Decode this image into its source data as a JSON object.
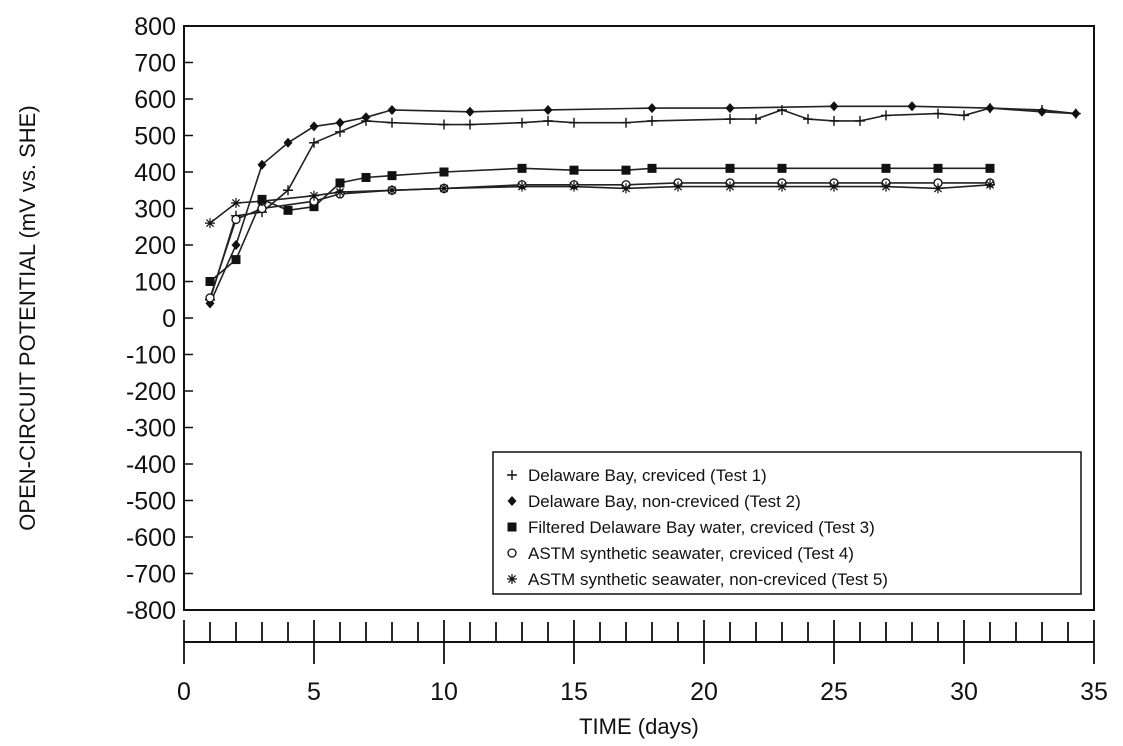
{
  "chart_data": {
    "type": "line",
    "xlabel": "TIME (days)",
    "ylabel": "OPEN-CIRCUIT POTENTIAL (mV vs. SHE)",
    "xlim": [
      0,
      35
    ],
    "ylim": [
      -800,
      800
    ],
    "xticks": [
      0,
      5,
      10,
      15,
      20,
      25,
      30,
      35
    ],
    "yticks": [
      800,
      700,
      600,
      500,
      400,
      300,
      200,
      100,
      0,
      -100,
      -200,
      -300,
      -400,
      -500,
      -600,
      -700,
      -800
    ],
    "grid": false,
    "legend_position": "bottom-right",
    "series": [
      {
        "name": "Delaware Bay, creviced (Test 1)",
        "marker": "plus",
        "points": [
          [
            1,
            50
          ],
          [
            2,
            280
          ],
          [
            3,
            290
          ],
          [
            4,
            350
          ],
          [
            5,
            480
          ],
          [
            6,
            510
          ],
          [
            7,
            540
          ],
          [
            8,
            535
          ],
          [
            10,
            530
          ],
          [
            11,
            530
          ],
          [
            13,
            535
          ],
          [
            14,
            540
          ],
          [
            15,
            535
          ],
          [
            17,
            535
          ],
          [
            18,
            540
          ],
          [
            21,
            545
          ],
          [
            22,
            545
          ],
          [
            23,
            570
          ],
          [
            24,
            545
          ],
          [
            25,
            540
          ],
          [
            26,
            540
          ],
          [
            27,
            555
          ],
          [
            29,
            560
          ],
          [
            30,
            555
          ],
          [
            31,
            575
          ],
          [
            33,
            570
          ],
          [
            34.3,
            560
          ]
        ]
      },
      {
        "name": "Delaware Bay, non-creviced (Test 2)",
        "marker": "diamond",
        "points": [
          [
            1,
            40
          ],
          [
            2,
            200
          ],
          [
            3,
            420
          ],
          [
            4,
            480
          ],
          [
            5,
            525
          ],
          [
            6,
            535
          ],
          [
            7,
            550
          ],
          [
            8,
            570
          ],
          [
            11,
            565
          ],
          [
            14,
            570
          ],
          [
            18,
            575
          ],
          [
            21,
            575
          ],
          [
            25,
            580
          ],
          [
            28,
            580
          ],
          [
            31,
            575
          ],
          [
            33,
            565
          ],
          [
            34.3,
            560
          ]
        ]
      },
      {
        "name": "Filtered Delaware Bay water, creviced (Test 3)",
        "marker": "square",
        "points": [
          [
            1,
            100
          ],
          [
            2,
            160
          ],
          [
            3,
            325
          ],
          [
            4,
            295
          ],
          [
            5,
            305
          ],
          [
            6,
            370
          ],
          [
            7,
            385
          ],
          [
            8,
            390
          ],
          [
            10,
            400
          ],
          [
            13,
            410
          ],
          [
            15,
            405
          ],
          [
            17,
            405
          ],
          [
            18,
            410
          ],
          [
            21,
            410
          ],
          [
            23,
            410
          ],
          [
            27,
            410
          ],
          [
            29,
            410
          ],
          [
            31,
            410
          ]
        ]
      },
      {
        "name": "ASTM synthetic seawater, creviced (Test 4)",
        "marker": "circle",
        "points": [
          [
            1,
            55
          ],
          [
            2,
            270
          ],
          [
            3,
            300
          ],
          [
            5,
            320
          ],
          [
            6,
            340
          ],
          [
            8,
            350
          ],
          [
            10,
            355
          ],
          [
            13,
            365
          ],
          [
            15,
            365
          ],
          [
            17,
            365
          ],
          [
            19,
            370
          ],
          [
            21,
            370
          ],
          [
            23,
            370
          ],
          [
            25,
            370
          ],
          [
            27,
            370
          ],
          [
            29,
            370
          ],
          [
            31,
            370
          ]
        ]
      },
      {
        "name": "ASTM synthetic seawater, non-creviced (Test 5)",
        "marker": "asterisk",
        "points": [
          [
            1,
            260
          ],
          [
            2,
            315
          ],
          [
            3,
            320
          ],
          [
            5,
            335
          ],
          [
            6,
            345
          ],
          [
            8,
            350
          ],
          [
            10,
            355
          ],
          [
            13,
            360
          ],
          [
            15,
            360
          ],
          [
            17,
            355
          ],
          [
            19,
            360
          ],
          [
            21,
            360
          ],
          [
            23,
            360
          ],
          [
            25,
            360
          ],
          [
            27,
            360
          ],
          [
            29,
            355
          ],
          [
            31,
            365
          ]
        ]
      }
    ]
  }
}
